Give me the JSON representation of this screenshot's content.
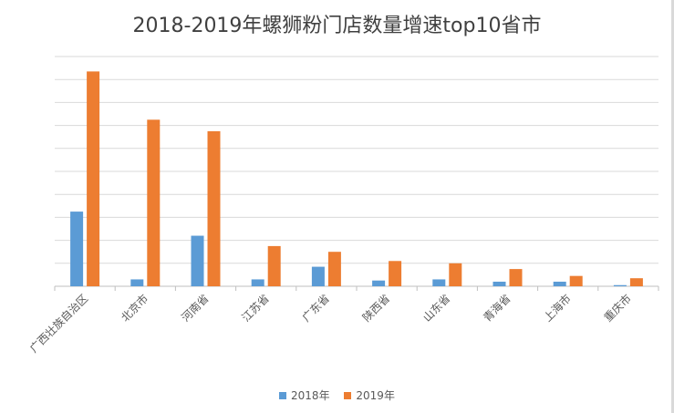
{
  "chart_data": {
    "type": "bar",
    "title": "2018-2019年螺狮粉门店数量增速top10省市",
    "categories": [
      "广西壮族自治区",
      "北京市",
      "河南省",
      "江苏省",
      "广东省",
      "陕西省",
      "山东省",
      "青海省",
      "上海市",
      "重庆市"
    ],
    "series": [
      {
        "name": "2018年",
        "color": "#5B9BD5",
        "values": [
          65,
          6,
          44,
          6,
          17,
          5,
          6,
          4,
          4,
          1
        ]
      },
      {
        "name": "2019年",
        "color": "#ED7D31",
        "values": [
          187,
          145,
          135,
          35,
          30,
          22,
          20,
          15,
          9,
          7
        ]
      }
    ],
    "ylim": [
      0,
      200
    ],
    "grid": true,
    "legend_position": "bottom"
  }
}
